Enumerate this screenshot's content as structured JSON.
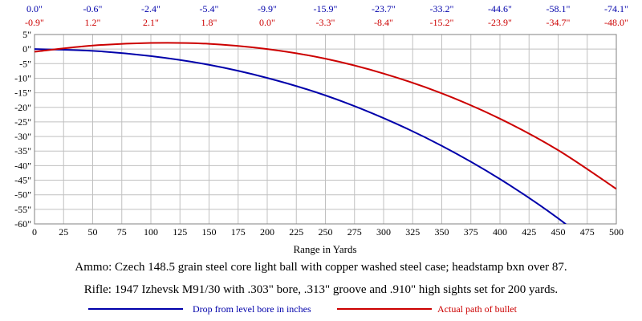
{
  "chart_data": {
    "type": "line",
    "xlabel": "Range in Yards",
    "ylabel": "",
    "xlim": [
      0,
      500
    ],
    "ylim": [
      -60,
      5
    ],
    "x_ticks": [
      0,
      25,
      50,
      75,
      100,
      125,
      150,
      175,
      200,
      225,
      250,
      275,
      300,
      325,
      350,
      375,
      400,
      425,
      450,
      475,
      500
    ],
    "y_tick_labels": [
      "5\"",
      "0\"",
      "-5\"",
      "-10\"",
      "-15\"",
      "-20\"",
      "-25\"",
      "-30\"",
      "-35\"",
      "-40\"",
      "-45\"",
      "-50\"",
      "-55\"",
      "-60\""
    ],
    "y_tick_values": [
      5,
      0,
      -5,
      -10,
      -15,
      -20,
      -25,
      -30,
      -35,
      -40,
      -45,
      -50,
      -55,
      -60
    ],
    "grid": true,
    "legend_position": "bottom",
    "top_label_x": [
      0,
      50,
      100,
      150,
      200,
      250,
      300,
      350,
      400,
      450,
      500
    ],
    "top_labels_drop": [
      "0.0\"",
      "-0.6\"",
      "-2.4\"",
      "-5.4\"",
      "-9.9\"",
      "-15.9\"",
      "-23.7\"",
      "-33.2\"",
      "-44.6\"",
      "-58.1\"",
      "-74.1\""
    ],
    "top_labels_path": [
      "-0.9\"",
      "1.2\"",
      "2.1\"",
      "1.8\"",
      "0.0\"",
      "-3.3\"",
      "-8.4\"",
      "-15.2\"",
      "-23.9\"",
      "-34.7\"",
      "-48.0\""
    ],
    "x": [
      0,
      50,
      100,
      150,
      200,
      250,
      300,
      350,
      400,
      450,
      500
    ],
    "series": [
      {
        "name": "Drop from level bore in inches",
        "color": "#0000aa",
        "values": [
          0.0,
          -0.6,
          -2.4,
          -5.4,
          -9.9,
          -15.9,
          -23.7,
          -33.2,
          -44.6,
          -58.1,
          -74.1
        ]
      },
      {
        "name": "Actual path of bullet",
        "color": "#cc0000",
        "values": [
          -0.9,
          1.2,
          2.1,
          1.8,
          0.0,
          -3.3,
          -8.4,
          -15.2,
          -23.9,
          -34.7,
          -48.0
        ]
      }
    ]
  },
  "notes": {
    "ammo": "Ammo:  Czech 148.5 grain steel core light ball with copper washed steel case; headstamp bxn over 87.",
    "rifle": "Rifle:  1947 Izhevsk M91/30 with .303\" bore, .313\" groove and .910\" high sights set for 200 yards."
  },
  "colors": {
    "grid": "#c0c0c0",
    "axis": "#808080",
    "drop": "#0000aa",
    "path": "#cc0000"
  }
}
